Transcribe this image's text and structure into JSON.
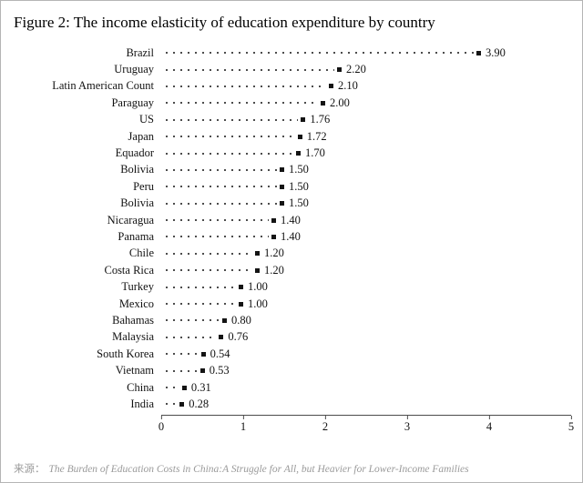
{
  "figure": {
    "title": "Figure 2: The income elasticity of education expenditure by country",
    "source_prefix": "来源：",
    "source_text": "The Burden of Education Costs in China:A Struggle for All, but Heavier for Lower-Income Families"
  },
  "chart_data": {
    "type": "scatter",
    "subtype": "dot-plot-with-dotted-leaders",
    "title": "Figure 2: The income elasticity of education expenditure by country",
    "categories": [
      "Brazil",
      "Uruguay",
      "Latin American Count",
      "Paraguay",
      "US",
      "Japan",
      "Equador",
      "Bolivia",
      "Peru",
      "Bolivia",
      "Nicaragua",
      "Panama",
      "Chile",
      "Costa Rica",
      "Turkey",
      "Mexico",
      "Bahamas",
      "Malaysia",
      "South Korea",
      "Vietnam",
      "China",
      "India"
    ],
    "values": [
      3.9,
      2.2,
      2.1,
      2.0,
      1.76,
      1.72,
      1.7,
      1.5,
      1.5,
      1.5,
      1.4,
      1.4,
      1.2,
      1.2,
      1.0,
      1.0,
      0.8,
      0.76,
      0.54,
      0.53,
      0.31,
      0.28
    ],
    "value_labels": [
      "3.90",
      "2.20",
      "2.10",
      "2.00",
      "1.76",
      "1.72",
      "1.70",
      "1.50",
      "1.50",
      "1.50",
      "1.40",
      "1.40",
      "1.20",
      "1.20",
      "1.00",
      "1.00",
      "0.80",
      "0.76",
      "0.54",
      "0.53",
      "0.31",
      "0.28"
    ],
    "xlabel": "",
    "ylabel": "",
    "xlim": [
      0,
      5
    ],
    "x_ticks": [
      "0",
      "1",
      "2",
      "3",
      "4",
      "5"
    ],
    "grid": false,
    "legend": "none",
    "marker_color": "#141414",
    "leader_color": "#4c4c4c"
  }
}
